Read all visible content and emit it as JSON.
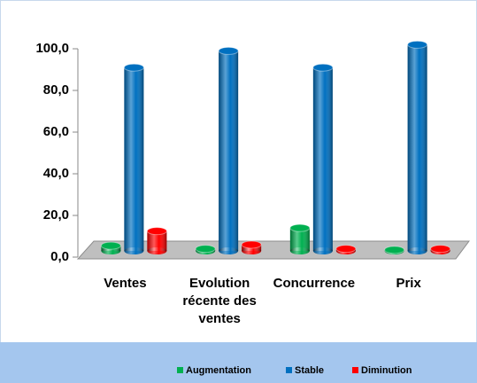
{
  "chart_data": {
    "type": "bar",
    "categories": [
      "Ventes",
      "Evolution récente des ventes",
      "Concurrence",
      "Prix"
    ],
    "series": [
      {
        "name": "Augmentation",
        "color": "#00b050",
        "values": [
          2.5,
          1,
          11,
          0.5
        ]
      },
      {
        "name": "Stable",
        "color": "#0070c0",
        "values": [
          88,
          96,
          88,
          99
        ]
      },
      {
        "name": "Diminution",
        "color": "#ff0000",
        "values": [
          9.5,
          3,
          1,
          1
        ]
      }
    ],
    "ylim": [
      0,
      100
    ],
    "yticks": [
      {
        "value": 0,
        "label": "0,0"
      },
      {
        "value": 20,
        "label": "20,0"
      },
      {
        "value": 40,
        "label": "40,0"
      },
      {
        "value": 60,
        "label": "60,0"
      },
      {
        "value": 80,
        "label": "80,0"
      },
      {
        "value": 100,
        "label": "100,0"
      }
    ],
    "legend": "bottom"
  }
}
